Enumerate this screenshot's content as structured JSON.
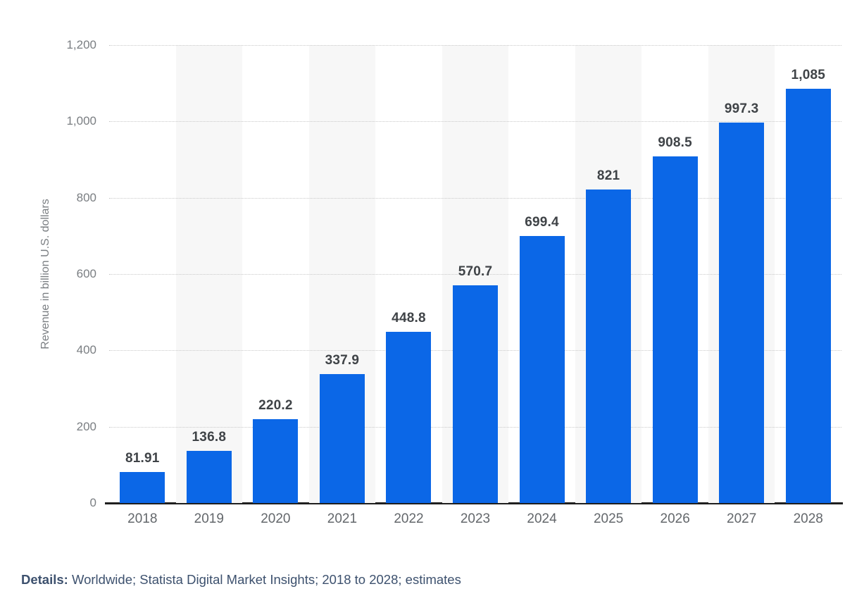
{
  "chart_data": {
    "type": "bar",
    "title": "",
    "xlabel": "",
    "ylabel": "Revenue in billion U.S. dollars",
    "categories": [
      "2018",
      "2019",
      "2020",
      "2021",
      "2022",
      "2023",
      "2024",
      "2025",
      "2026",
      "2027",
      "2028"
    ],
    "values": [
      81.91,
      136.8,
      220.2,
      337.9,
      448.8,
      570.7,
      699.4,
      821,
      908.5,
      997.3,
      1085
    ],
    "value_labels": [
      "81.91",
      "136.8",
      "220.2",
      "337.9",
      "448.8",
      "570.7",
      "699.4",
      "821",
      "908.5",
      "997.3",
      "1,085"
    ],
    "ylim": [
      0,
      1200
    ],
    "ytick_labels": [
      "0",
      "200",
      "400",
      "600",
      "800",
      "1,000",
      "1,200"
    ],
    "grid": "horizontal-dotted",
    "legend": "none",
    "column_banding": "alternating light bands behind 2019, 2021, 2023, 2025, 2027",
    "colors": {
      "bar": "#0b67e7",
      "band": "#f7f7f7",
      "gridline": "#c9c9c9",
      "axis_line": "#1f1f1f",
      "value_label": "#3f4347",
      "tick_label": "#7a7e82",
      "x_label": "#63676b",
      "footer": "#3d516e"
    }
  },
  "footer": {
    "label": "Details:",
    "text": " Worldwide; Statista Digital Market Insights; 2018 to 2028; estimates"
  }
}
